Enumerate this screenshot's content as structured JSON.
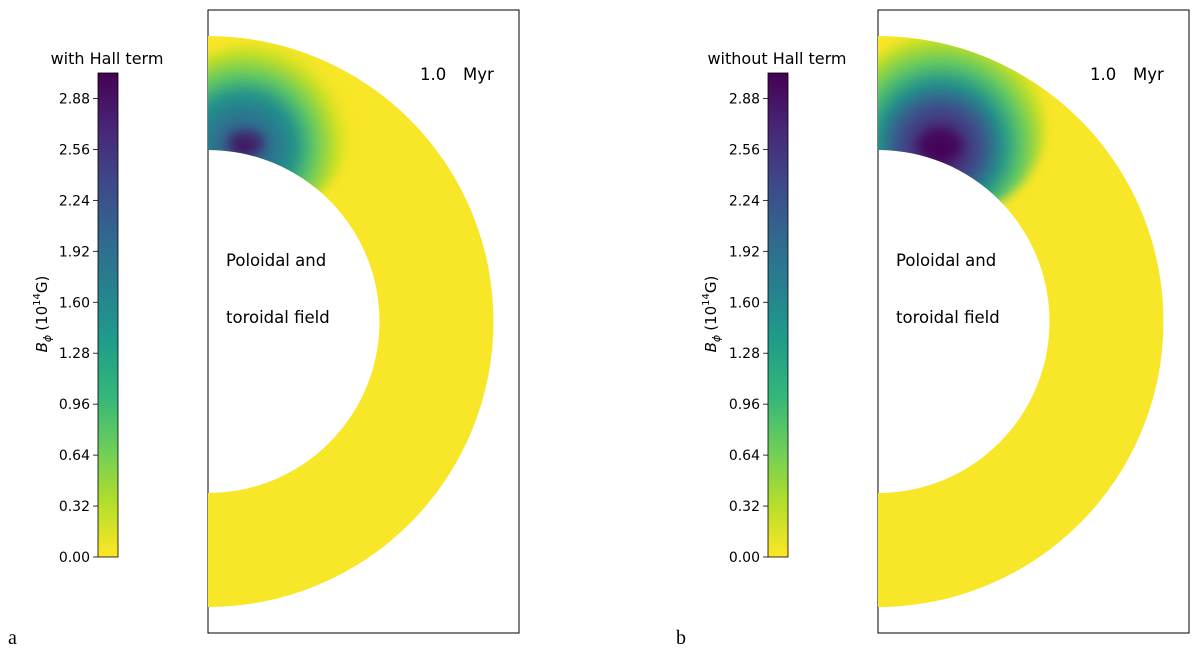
{
  "figure": {
    "colormap": [
      "#fde725",
      "#b5de2b",
      "#6ece58",
      "#35b779",
      "#1f9e89",
      "#26828e",
      "#31688e",
      "#3e4989",
      "#482878",
      "#440154"
    ]
  },
  "panels": [
    {
      "letter": "a",
      "colorbar_title": "with Hall term",
      "time_value": "1.0",
      "time_unit": "Myr",
      "text_line1": "Poloidal and",
      "text_line2": "toroidal field"
    },
    {
      "letter": "b",
      "colorbar_title": "without Hall term",
      "time_value": "1.0",
      "time_unit": "Myr",
      "text_line1": "Poloidal and",
      "text_line2": "toroidal field"
    }
  ],
  "chart_data": [
    {
      "type": "heatmap",
      "title": "with Hall term",
      "quantity": "B_phi",
      "colorbar_label": "Bϕ (10^14G)",
      "colorbar_label_parts": {
        "symbol": "B",
        "subscript": "ϕ",
        "open": "(10",
        "exponent": "14",
        "close": "G)"
      },
      "colorbar_ticks": [
        "0.00",
        "0.32",
        "0.64",
        "0.96",
        "1.28",
        "1.60",
        "1.92",
        "2.24",
        "2.56",
        "2.88"
      ],
      "colorbar_range": [
        0.0,
        3.04
      ],
      "colormap": "viridis_r",
      "annotation_time": "1.0   Myr",
      "annotation_text": [
        "Poloidal and",
        "toroidal field"
      ],
      "field_peak_value": 3.0,
      "field_peak_location": "inner boundary, northern hemisphere near pole",
      "background_value": 0.0,
      "grid": false
    },
    {
      "type": "heatmap",
      "title": "without Hall term",
      "quantity": "B_phi",
      "colorbar_label": "Bϕ (10^14G)",
      "colorbar_label_parts": {
        "symbol": "B",
        "subscript": "ϕ",
        "open": "(10",
        "exponent": "14",
        "close": "G)"
      },
      "colorbar_ticks": [
        "0.00",
        "0.32",
        "0.64",
        "0.96",
        "1.28",
        "1.60",
        "1.92",
        "2.24",
        "2.56",
        "2.88"
      ],
      "colorbar_range": [
        0.0,
        3.04
      ],
      "colormap": "viridis_r",
      "annotation_time": "1.0   Myr",
      "annotation_text": [
        "Poloidal and",
        "toroidal field"
      ],
      "field_peak_value": 3.04,
      "field_peak_location": "inner boundary, northern hemisphere near pole",
      "background_value": 0.0,
      "grid": false
    }
  ]
}
